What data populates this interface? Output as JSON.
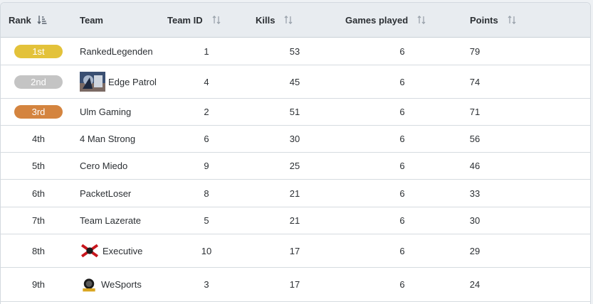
{
  "columns": {
    "rank": "Rank",
    "team": "Team",
    "team_id": "Team ID",
    "kills": "Kills",
    "games_played": "Games played",
    "points": "Points"
  },
  "colors": {
    "gold": "#e3c23a",
    "silver": "#c4c4c4",
    "bronze": "#d4843f"
  },
  "rows": [
    {
      "rank": "1st",
      "team": "RankedLegenden",
      "team_id": "1",
      "kills": "53",
      "games": "6",
      "points": "79"
    },
    {
      "rank": "2nd",
      "team": "Edge Patrol",
      "team_id": "4",
      "kills": "45",
      "games": "6",
      "points": "74",
      "logo": "edge-patrol-logo"
    },
    {
      "rank": "3rd",
      "team": "Ulm Gaming",
      "team_id": "2",
      "kills": "51",
      "games": "6",
      "points": "71"
    },
    {
      "rank": "4th",
      "team": "4 Man Strong",
      "team_id": "6",
      "kills": "30",
      "games": "6",
      "points": "56"
    },
    {
      "rank": "5th",
      "team": "Cero Miedo",
      "team_id": "9",
      "kills": "25",
      "games": "6",
      "points": "46"
    },
    {
      "rank": "6th",
      "team": "PacketLoser",
      "team_id": "8",
      "kills": "21",
      "games": "6",
      "points": "33"
    },
    {
      "rank": "7th",
      "team": "Team Lazerate",
      "team_id": "5",
      "kills": "21",
      "games": "6",
      "points": "30"
    },
    {
      "rank": "8th",
      "team": "Executive",
      "team_id": "10",
      "kills": "17",
      "games": "6",
      "points": "29",
      "logo": "executive-logo"
    },
    {
      "rank": "9th",
      "team": "WeSports",
      "team_id": "3",
      "kills": "17",
      "games": "6",
      "points": "24",
      "logo": "wesports-logo"
    }
  ]
}
